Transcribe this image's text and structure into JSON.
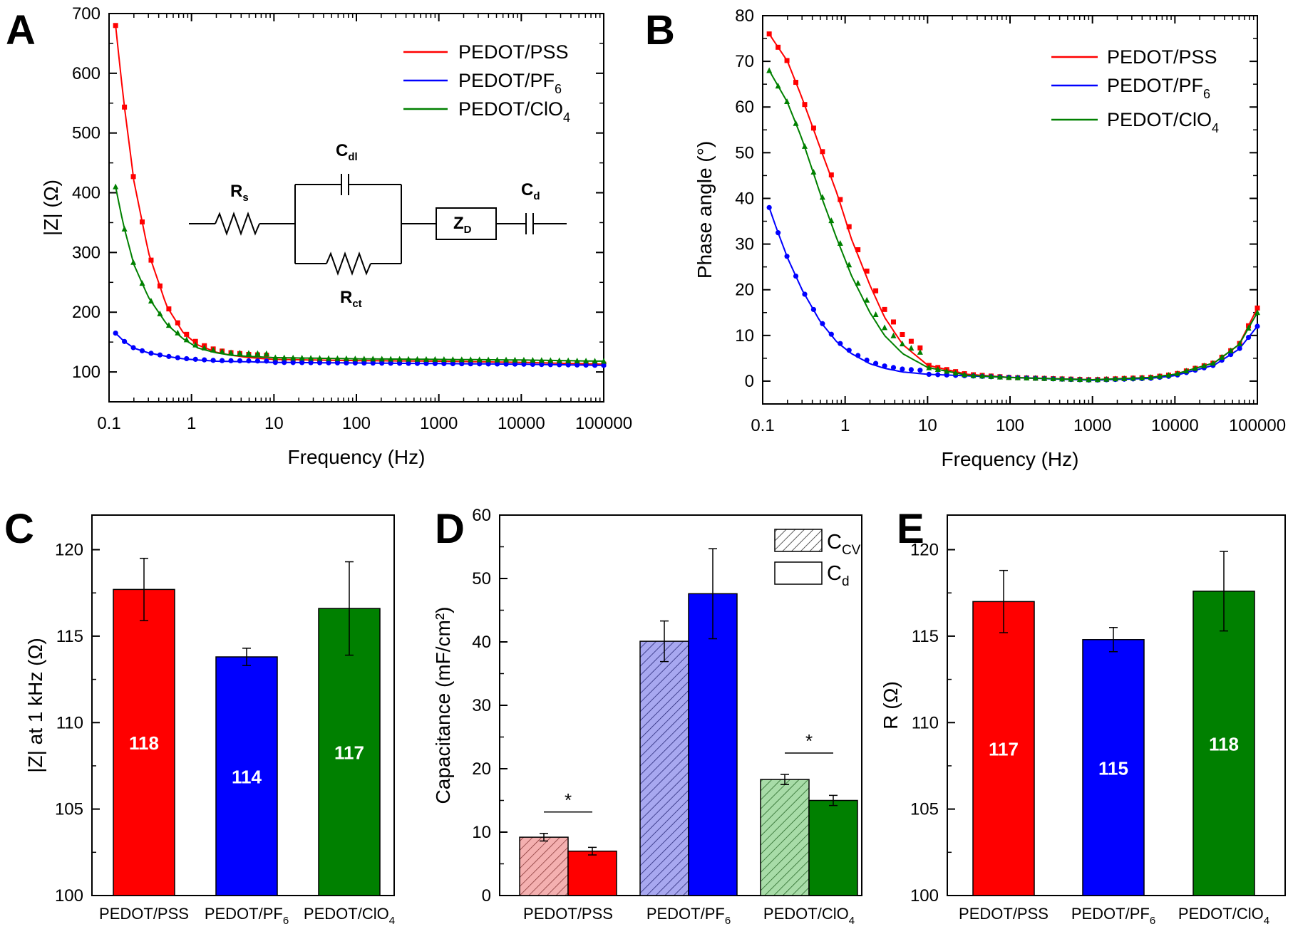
{
  "colors": {
    "red": "#ff0000",
    "blue": "#0000ff",
    "green": "#008000",
    "red_fill": "#ff0000",
    "blue_fill": "#0000ff",
    "green_fill": "#008000",
    "red_hatch": "#f4b0b0",
    "blue_hatch": "#a8a8f0",
    "green_hatch": "#a8dca8"
  },
  "chart_data": [
    {
      "panel": "A",
      "type": "line",
      "xscale": "log",
      "xlabel": "Frequency (Hz)",
      "ylabel": "|Z| (Ω)",
      "xlim": [
        0.1,
        100000
      ],
      "ylim": [
        50,
        700
      ],
      "x_ticks": [
        0.1,
        1,
        10,
        100,
        1000,
        10000,
        100000
      ],
      "x_tick_labels": [
        "0.1",
        "1",
        "10",
        "100",
        "1000",
        "10000",
        "100000"
      ],
      "y_ticks": [
        100,
        200,
        300,
        400,
        500,
        600,
        700
      ],
      "y_tick_labels": [
        "100",
        "200",
        "300",
        "400",
        "500",
        "600",
        "700"
      ],
      "legend": [
        "PEDOT/PSS",
        "PEDOT/PF6",
        "PEDOT/ClO4"
      ],
      "legend_placement": "top-right",
      "series": [
        {
          "name": "PEDOT/PSS",
          "color_key": "red",
          "marker": "square",
          "fit_x": [
            0.12,
            0.15,
            0.2,
            0.3,
            0.5,
            0.8,
            1.2,
            2,
            3,
            5,
            10,
            30,
            100,
            1000,
            10000,
            100000
          ],
          "fit_y": [
            680,
            555,
            420,
            300,
            210,
            165,
            145,
            133,
            128,
            124,
            121,
            120,
            119,
            118,
            116,
            113
          ]
        },
        {
          "name": "PEDOT/PF6",
          "color_key": "blue",
          "marker": "circle",
          "fit_x": [
            0.12,
            0.15,
            0.2,
            0.3,
            0.5,
            0.8,
            1.2,
            2,
            5,
            10,
            100,
            1000,
            10000,
            100000
          ],
          "fit_y": [
            165,
            152,
            140,
            132,
            126,
            122,
            120,
            118,
            117,
            116,
            115,
            114,
            113,
            111
          ]
        },
        {
          "name": "PEDOT/ClO4",
          "color_key": "green",
          "marker": "triangle",
          "fit_x": [
            0.12,
            0.15,
            0.2,
            0.3,
            0.5,
            0.8,
            1.2,
            2,
            3,
            5,
            10,
            100,
            1000,
            10000,
            100000
          ],
          "fit_y": [
            410,
            345,
            280,
            225,
            180,
            155,
            140,
            132,
            128,
            126,
            124,
            122,
            121,
            120,
            118
          ]
        }
      ],
      "inset_labels": {
        "rs": "R",
        "rs_sub": "s",
        "cdl": "C",
        "cdl_sub": "dl",
        "rct": "R",
        "rct_sub": "ct",
        "zd": "Z",
        "zd_sub": "D",
        "cd": "C",
        "cd_sub": "d"
      }
    },
    {
      "panel": "B",
      "type": "line",
      "xscale": "log",
      "xlabel": "Frequency (Hz)",
      "ylabel": "Phase angle (°)",
      "xlim": [
        0.1,
        100000
      ],
      "ylim": [
        -5,
        80
      ],
      "x_ticks": [
        0.1,
        1,
        10,
        100,
        1000,
        10000,
        100000
      ],
      "x_tick_labels": [
        "0.1",
        "1",
        "10",
        "100",
        "1000",
        "10000",
        "100000"
      ],
      "y_ticks": [
        0,
        10,
        20,
        30,
        40,
        50,
        60,
        70,
        80
      ],
      "y_tick_labels": [
        "0",
        "10",
        "20",
        "30",
        "40",
        "50",
        "60",
        "70",
        "80"
      ],
      "legend": [
        "PEDOT/PSS",
        "PEDOT/PF6",
        "PEDOT/ClO4"
      ],
      "legend_placement": "top-right",
      "series": [
        {
          "name": "PEDOT/PSS",
          "color_key": "red",
          "marker": "square",
          "fit_x": [
            0.12,
            0.2,
            0.3,
            0.5,
            0.8,
            1.2,
            2,
            3,
            5,
            10,
            30,
            100,
            1000,
            5000,
            10000,
            30000,
            60000,
            100000
          ],
          "fit_y": [
            76,
            70,
            62,
            51,
            41,
            31,
            21,
            14,
            8,
            3.5,
            1.5,
            0.8,
            0.3,
            0.8,
            1.5,
            4,
            8,
            16
          ]
        },
        {
          "name": "PEDOT/PF6",
          "color_key": "blue",
          "marker": "circle",
          "fit_x": [
            0.12,
            0.15,
            0.2,
            0.3,
            0.5,
            0.8,
            1.2,
            2,
            3,
            5,
            10,
            100,
            1000,
            5000,
            10000,
            30000,
            60000,
            100000
          ],
          "fit_y": [
            38,
            33,
            27,
            20,
            13,
            8.5,
            6,
            3.8,
            2.8,
            2,
            1.5,
            0.8,
            0.2,
            0.6,
            1.2,
            3.5,
            7,
            12
          ]
        },
        {
          "name": "PEDOT/ClO4",
          "color_key": "green",
          "marker": "triangle",
          "fit_x": [
            0.12,
            0.2,
            0.3,
            0.5,
            0.8,
            1.2,
            2,
            3,
            5,
            10,
            30,
            100,
            1000,
            5000,
            10000,
            30000,
            60000,
            100000
          ],
          "fit_y": [
            68,
            61,
            53,
            41,
            31,
            23,
            15,
            10,
            6,
            3,
            1.3,
            0.8,
            0.3,
            0.8,
            1.5,
            4,
            8,
            15
          ]
        }
      ]
    },
    {
      "panel": "C",
      "type": "bar",
      "ylabel": "|Z| at 1 kHz (Ω)",
      "ylim": [
        100,
        122
      ],
      "y_ticks": [
        100,
        105,
        110,
        115,
        120
      ],
      "y_tick_labels": [
        "100",
        "105",
        "110",
        "115",
        "120"
      ],
      "categories": [
        "PEDOT/PSS",
        "PEDOT/PF6",
        "PEDOT/ClO4"
      ],
      "values": [
        117.7,
        113.8,
        116.6
      ],
      "errors": [
        1.8,
        0.5,
        2.7
      ],
      "bar_labels": [
        "118",
        "114",
        "117"
      ],
      "color_keys": [
        "red",
        "blue",
        "green"
      ]
    },
    {
      "panel": "D",
      "type": "bar",
      "ylabel": "Capacitance (mF/cm²)",
      "ylim": [
        0,
        60
      ],
      "y_ticks": [
        0,
        10,
        20,
        30,
        40,
        50,
        60
      ],
      "y_tick_labels": [
        "0",
        "10",
        "20",
        "30",
        "40",
        "50",
        "60"
      ],
      "categories": [
        "PEDOT/PSS",
        "PEDOT/PF6",
        "PEDOT/ClO4"
      ],
      "legend": [
        "CCV",
        "Cd"
      ],
      "legend_placement": "top-right",
      "series": [
        {
          "name": "CCV",
          "values": [
            9.2,
            40.1,
            18.3
          ],
          "errors": [
            0.6,
            3.2,
            0.8
          ],
          "style": "hatched"
        },
        {
          "name": "Cd",
          "values": [
            7.0,
            47.6,
            15.0
          ],
          "errors": [
            0.6,
            7.1,
            0.8
          ],
          "style": "solid"
        }
      ],
      "significance": [
        {
          "category": "PEDOT/PSS",
          "label": "*"
        },
        {
          "category": "PEDOT/ClO4",
          "label": "*"
        }
      ],
      "color_keys": [
        "red",
        "blue",
        "green"
      ]
    },
    {
      "panel": "E",
      "type": "bar",
      "ylabel": "R (Ω)",
      "ylim": [
        100,
        122
      ],
      "y_ticks": [
        100,
        105,
        110,
        115,
        120
      ],
      "y_tick_labels": [
        "100",
        "105",
        "110",
        "115",
        "120"
      ],
      "categories": [
        "PEDOT/PSS",
        "PEDOT/PF6",
        "PEDOT/ClO4"
      ],
      "values": [
        117.0,
        114.8,
        117.6
      ],
      "errors": [
        1.8,
        0.7,
        2.3
      ],
      "bar_labels": [
        "117",
        "115",
        "118"
      ],
      "color_keys": [
        "red",
        "blue",
        "green"
      ]
    }
  ],
  "panel_letters": [
    "A",
    "B",
    "C",
    "D",
    "E"
  ],
  "legend_text": {
    "pss": "PEDOT/PSS",
    "pf_base": "PEDOT/PF",
    "pf_sub": "6",
    "clo_base": "PEDOT/ClO",
    "clo_sub": "4",
    "ccv_base": "C",
    "ccv_sub": "CV",
    "cd_base": "C",
    "cd_sub": "d"
  }
}
